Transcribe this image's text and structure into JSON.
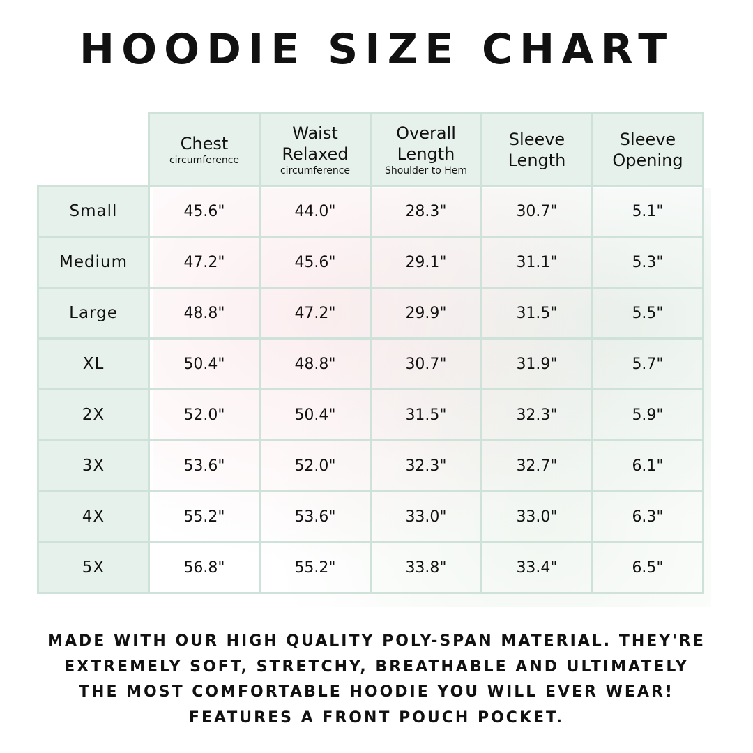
{
  "title": "HOODIE SIZE CHART",
  "columns": [
    {
      "label": "Chest",
      "sub": "circumference"
    },
    {
      "label": "Waist Relaxed",
      "sub": "circumference"
    },
    {
      "label": "Overall Length",
      "sub": "Shoulder to Hem"
    },
    {
      "label": "Sleeve Length",
      "sub": ""
    },
    {
      "label": "Sleeve Opening",
      "sub": ""
    }
  ],
  "rows": [
    {
      "size": "Small",
      "values": [
        "45.6\"",
        "44.0\"",
        "28.3\"",
        "30.7\"",
        "5.1\""
      ]
    },
    {
      "size": "Medium",
      "values": [
        "47.2\"",
        "45.6\"",
        "29.1\"",
        "31.1\"",
        "5.3\""
      ]
    },
    {
      "size": "Large",
      "values": [
        "48.8\"",
        "47.2\"",
        "29.9\"",
        "31.5\"",
        "5.5\""
      ]
    },
    {
      "size": "XL",
      "values": [
        "50.4\"",
        "48.8\"",
        "30.7\"",
        "31.9\"",
        "5.7\""
      ]
    },
    {
      "size": "2X",
      "values": [
        "52.0\"",
        "50.4\"",
        "31.5\"",
        "32.3\"",
        "5.9\""
      ]
    },
    {
      "size": "3X",
      "values": [
        "53.6\"",
        "52.0\"",
        "32.3\"",
        "32.7\"",
        "6.1\""
      ]
    },
    {
      "size": "4X",
      "values": [
        "55.2\"",
        "53.6\"",
        "33.0\"",
        "33.0\"",
        "6.3\""
      ]
    },
    {
      "size": "5X",
      "values": [
        "56.8\"",
        "55.2\"",
        "33.8\"",
        "33.4\"",
        "6.5\""
      ]
    }
  ],
  "footer": [
    "Made with our high quality poly-span material. They're",
    "extremely soft, stretchy, breathable and ultimately",
    "the most comfortable hoodie you will ever wear!",
    "Features a front pouch pocket."
  ],
  "colors": {
    "header_bg": "#e7f1ec",
    "border": "#cfe2d9"
  }
}
